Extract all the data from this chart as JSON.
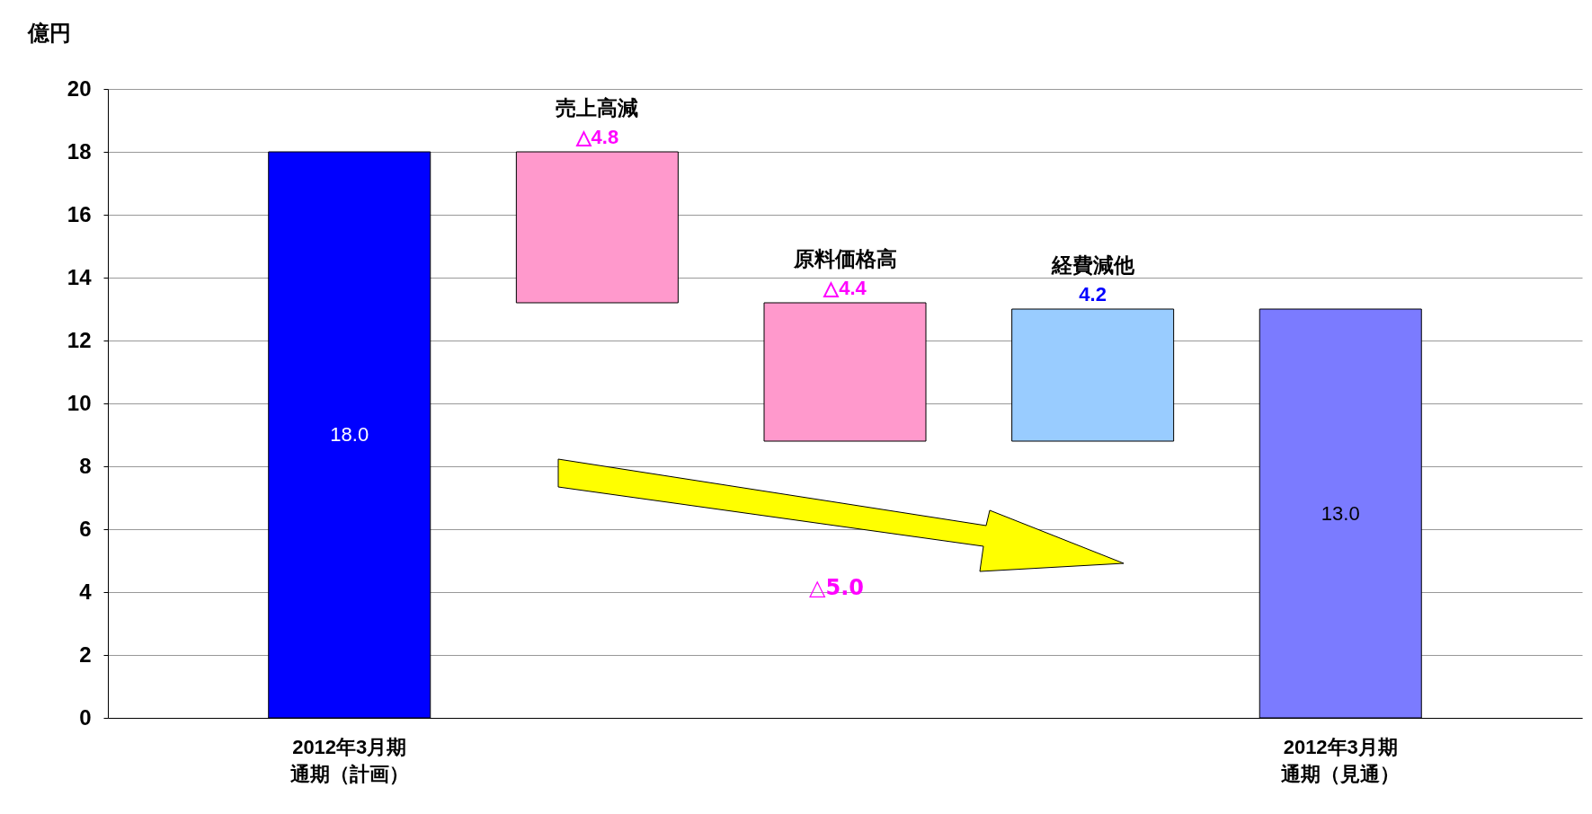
{
  "chart_data": {
    "type": "bar",
    "ylabel": "億円",
    "categories": [
      "2012年3月期通期（計画）",
      null,
      null,
      null,
      "2012年3月期通期（見通）"
    ],
    "values": [
      18.0,
      -4.8,
      -4.4,
      4.2,
      13.0
    ],
    "base": [
      0,
      18.0,
      13.2,
      8.8,
      0
    ],
    "colors": [
      "#0000ff",
      "#ff99cc",
      "#ff99cc",
      "#99ccff",
      "#7b7bff"
    ],
    "value_labels": [
      "18.0",
      "△4.8",
      "△4.4",
      "4.2",
      "13.0"
    ],
    "annotations": [
      "売上高減",
      "原料価格高",
      "経費減他",
      "△5.0"
    ],
    "ylim": [
      0,
      20
    ],
    "yticks": [
      0,
      2,
      4,
      6,
      8,
      10,
      12,
      14,
      16,
      18,
      20
    ],
    "grid": "y"
  }
}
